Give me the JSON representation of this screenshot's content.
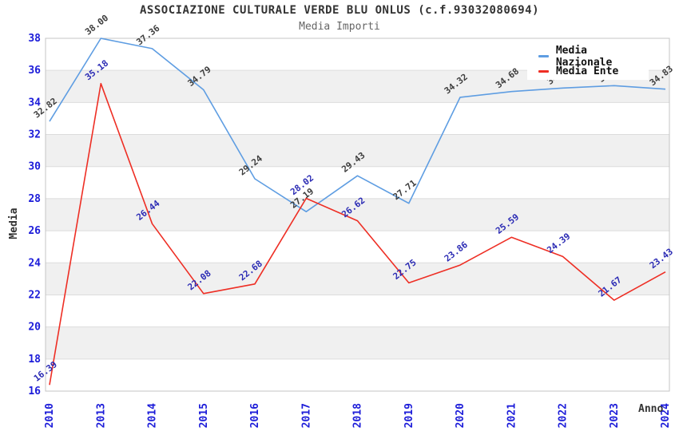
{
  "header": {
    "title": "ASSOCIAZIONE CULTURALE VERDE BLU ONLUS (c.f.93032080694)",
    "subtitle": "Media Importi"
  },
  "colors": {
    "title": "#333333",
    "subtitle": "#666666",
    "axis_title": "#333333",
    "tick_label": "#1c1cd9",
    "band_gray": "#f0f0f0",
    "band_white": "#ffffff",
    "gridline": "#dcdcdc",
    "axis_border": "#c4c4c4",
    "legend_background": "#ffffff",
    "nazionale_line": "#5e9de2",
    "ente_line": "#ee2e24",
    "nazionale_value_label": "#3d3d3d",
    "ente_value_label": "#2b2bb4"
  },
  "chart_data": {
    "type": "line",
    "title": "ASSOCIAZIONE CULTURALE VERDE BLU ONLUS (c.f.93032080694)",
    "subtitle": "Media Importi",
    "xlabel": "Anno",
    "ylabel": "Media",
    "categories": [
      "2010",
      "2013",
      "2014",
      "2015",
      "2016",
      "2017",
      "2018",
      "2019",
      "2020",
      "2021",
      "2022",
      "2023",
      "2024"
    ],
    "ylim": [
      16,
      38
    ],
    "ytick_step": 2,
    "grid": "horizontal gridlines with alternating white/gray bands",
    "legend_position": "top-right",
    "point_labels": "values annotated at each point, rotated ~38deg; 2022-2023 Media Nazionale labels hidden behind legend",
    "series": [
      {
        "name": "Media Nazionale",
        "color": "#5e9de2",
        "label_color": "#3d3d3d",
        "values": [
          32.82,
          38.0,
          37.36,
          34.79,
          29.24,
          27.19,
          29.43,
          27.71,
          34.32,
          34.68,
          34.9,
          35.05,
          34.83
        ]
      },
      {
        "name": "Media Ente",
        "color": "#ee2e24",
        "label_color": "#2b2bb4",
        "values": [
          16.39,
          35.18,
          26.44,
          22.08,
          22.68,
          28.02,
          26.62,
          22.75,
          23.86,
          25.59,
          24.39,
          21.67,
          23.43
        ]
      }
    ]
  }
}
